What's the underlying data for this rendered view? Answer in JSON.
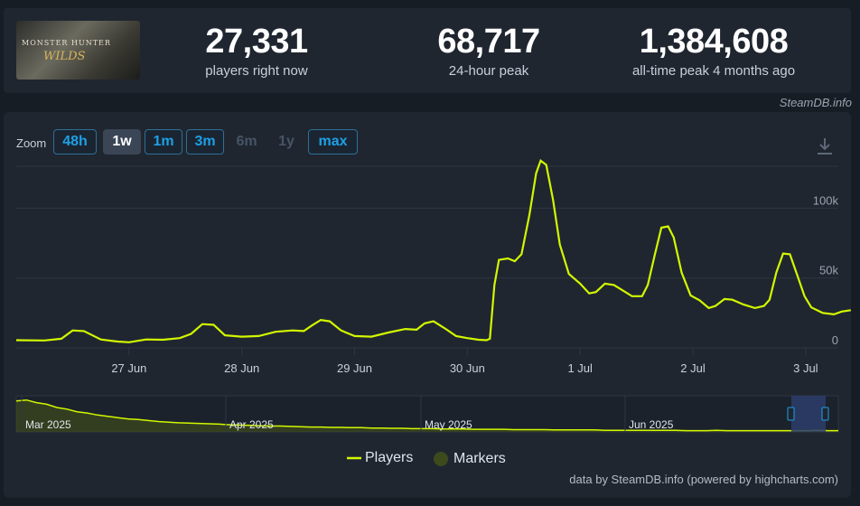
{
  "game": {
    "logo_line1": "MONSTER HUNTER",
    "logo_line2": "WILDS"
  },
  "stats": [
    {
      "value": "27,331",
      "label": "players right now"
    },
    {
      "value": "68,717",
      "label": "24-hour peak"
    },
    {
      "value": "1,384,608",
      "label": "all-time peak 4 months ago"
    }
  ],
  "credit_top": "SteamDB.info",
  "zoom": {
    "label": "Zoom",
    "buttons": [
      {
        "label": "48h",
        "state": "enabled"
      },
      {
        "label": "1w",
        "state": "selected"
      },
      {
        "label": "1m",
        "state": "enabled"
      },
      {
        "label": "3m",
        "state": "enabled"
      },
      {
        "label": "6m",
        "state": "disabled"
      },
      {
        "label": "1y",
        "state": "disabled"
      },
      {
        "label": "max",
        "state": "enabled"
      }
    ]
  },
  "download_icon": "download-icon",
  "colors": {
    "line": "#d2f700",
    "nav_fill": "#3d4a1c",
    "nav_range": "#2b3d6b",
    "grid": "#2e3744"
  },
  "chart_data": {
    "type": "line",
    "title": "",
    "xlabel": "",
    "ylabel": "",
    "ylim": [
      0,
      130000
    ],
    "ytick_labels": [
      "0",
      "50k",
      "100k"
    ],
    "yticks": [
      0,
      50000,
      100000
    ],
    "xtick_labels": [
      "27 Jun",
      "28 Jun",
      "29 Jun",
      "30 Jun",
      "1 Jul",
      "2 Jul",
      "3 Jul"
    ],
    "xtick_days": [
      1,
      2,
      3,
      4,
      5,
      6,
      7
    ],
    "xlim_days": [
      0.0,
      7.1
    ],
    "grid": true,
    "series": [
      {
        "name": "Players",
        "points": [
          [
            0.0,
            5500
          ],
          [
            0.25,
            5300
          ],
          [
            0.4,
            6500
          ],
          [
            0.5,
            12500
          ],
          [
            0.6,
            12000
          ],
          [
            0.75,
            6000
          ],
          [
            0.9,
            4500
          ],
          [
            1.0,
            4000
          ],
          [
            1.15,
            6000
          ],
          [
            1.3,
            5800
          ],
          [
            1.45,
            7000
          ],
          [
            1.55,
            10000
          ],
          [
            1.65,
            17000
          ],
          [
            1.75,
            16500
          ],
          [
            1.85,
            9000
          ],
          [
            2.0,
            8000
          ],
          [
            2.15,
            8500
          ],
          [
            2.3,
            11500
          ],
          [
            2.45,
            12500
          ],
          [
            2.55,
            12000
          ],
          [
            2.62,
            16000
          ],
          [
            2.7,
            20000
          ],
          [
            2.78,
            19000
          ],
          [
            2.88,
            12500
          ],
          [
            3.0,
            8500
          ],
          [
            3.15,
            8000
          ],
          [
            3.3,
            11000
          ],
          [
            3.45,
            13500
          ],
          [
            3.55,
            13000
          ],
          [
            3.62,
            17500
          ],
          [
            3.7,
            19000
          ],
          [
            3.8,
            14000
          ],
          [
            3.9,
            8500
          ],
          [
            4.0,
            7000
          ],
          [
            4.1,
            5800
          ],
          [
            4.17,
            5500
          ],
          [
            4.2,
            6500
          ],
          [
            4.24,
            45000
          ],
          [
            4.28,
            63000
          ],
          [
            4.36,
            64000
          ],
          [
            4.42,
            62000
          ],
          [
            4.48,
            67000
          ],
          [
            4.55,
            95000
          ],
          [
            4.61,
            125000
          ],
          [
            4.65,
            134000
          ],
          [
            4.7,
            131000
          ],
          [
            4.76,
            106000
          ],
          [
            4.82,
            74000
          ],
          [
            4.9,
            53000
          ],
          [
            5.0,
            46000
          ],
          [
            5.08,
            39000
          ],
          [
            5.14,
            40000
          ],
          [
            5.22,
            46000
          ],
          [
            5.3,
            45000
          ],
          [
            5.38,
            41000
          ],
          [
            5.46,
            37000
          ],
          [
            5.55,
            37000
          ],
          [
            5.6,
            45000
          ],
          [
            5.66,
            66000
          ],
          [
            5.72,
            86000
          ],
          [
            5.78,
            87000
          ],
          [
            5.83,
            79000
          ],
          [
            5.9,
            54000
          ],
          [
            5.98,
            37500
          ],
          [
            6.06,
            34000
          ],
          [
            6.14,
            28500
          ],
          [
            6.2,
            30000
          ],
          [
            6.28,
            35000
          ],
          [
            6.35,
            34500
          ],
          [
            6.45,
            31000
          ],
          [
            6.55,
            28500
          ],
          [
            6.63,
            30000
          ],
          [
            6.68,
            34500
          ],
          [
            6.74,
            54000
          ],
          [
            6.8,
            67500
          ],
          [
            6.86,
            67000
          ],
          [
            6.93,
            51000
          ],
          [
            6.99,
            37000
          ],
          [
            7.05,
            29000
          ],
          [
            7.15,
            25000
          ],
          [
            7.25,
            24000
          ],
          [
            7.32,
            26000
          ],
          [
            7.4,
            27000
          ]
        ]
      }
    ],
    "legend": {
      "items": [
        "Players",
        "Markers"
      ],
      "position": "bottom-center"
    },
    "navigator": {
      "labels": [
        "Mar 2025",
        "Apr 2025",
        "May 2025",
        "Jun 2025"
      ],
      "values": [
        95,
        98,
        90,
        85,
        75,
        70,
        62,
        58,
        52,
        48,
        44,
        40,
        38,
        35,
        32,
        30,
        28,
        27,
        26,
        25,
        24,
        22,
        21,
        20,
        19,
        18,
        18,
        17,
        16,
        15,
        15,
        14,
        14,
        13,
        13,
        12,
        12,
        11,
        11,
        10,
        10,
        10,
        9,
        9,
        9,
        8,
        8,
        8,
        8,
        7,
        7,
        7,
        7,
        6,
        6,
        6,
        6,
        6,
        5,
        5,
        5,
        5,
        5,
        5,
        5,
        5,
        4,
        4,
        4,
        5,
        4,
        4,
        4,
        4,
        4,
        4,
        4,
        4,
        4,
        5,
        4,
        4
      ]
    }
  },
  "credit_bottom": "data by SteamDB.info (powered by highcharts.com)"
}
